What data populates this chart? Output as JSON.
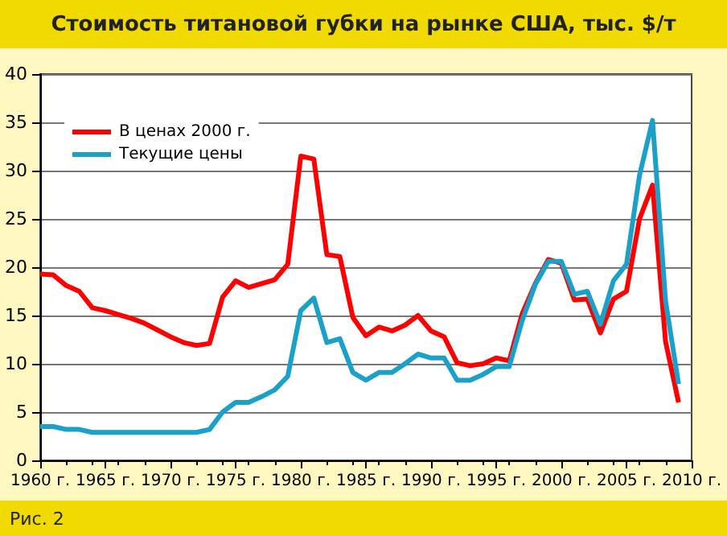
{
  "chart_data": {
    "type": "line",
    "title": "Стоимость титановой губки на рынке США,  тыс. $/т",
    "x": [
      1960,
      1961,
      1962,
      1963,
      1964,
      1965,
      1966,
      1967,
      1968,
      1969,
      1970,
      1971,
      1972,
      1973,
      1974,
      1975,
      1976,
      1977,
      1978,
      1979,
      1980,
      1981,
      1982,
      1983,
      1984,
      1985,
      1986,
      1987,
      1988,
      1989,
      1990,
      1991,
      1992,
      1993,
      1994,
      1995,
      1996,
      1997,
      1998,
      1999,
      2000,
      2001,
      2002,
      2003,
      2004,
      2005,
      2006,
      2007,
      2008,
      2009
    ],
    "series": [
      {
        "name": "В ценах 2000 г.",
        "color": "#ff0000",
        "values": [
          19.3,
          19.2,
          18.1,
          17.5,
          15.8,
          15.5,
          15.1,
          14.7,
          14.2,
          13.5,
          12.8,
          12.2,
          11.9,
          12.1,
          16.9,
          18.6,
          17.9,
          18.3,
          18.7,
          20.3,
          31.5,
          31.2,
          21.3,
          21.1,
          14.8,
          12.9,
          13.8,
          13.4,
          14.0,
          15.0,
          13.4,
          12.8,
          10.1,
          9.8,
          10.0,
          10.6,
          10.3,
          15.2,
          18.3,
          20.8,
          20.4,
          16.6,
          16.7,
          13.2,
          16.7,
          17.5,
          25.0,
          28.5,
          12.3,
          6.0
        ]
      },
      {
        "name": "Текущие цены",
        "color": "#1ba1c9",
        "values": [
          3.5,
          3.5,
          3.2,
          3.2,
          2.9,
          2.9,
          2.9,
          2.9,
          2.9,
          2.9,
          2.9,
          2.9,
          2.9,
          3.2,
          5.0,
          6.0,
          6.0,
          6.6,
          7.3,
          8.7,
          15.5,
          16.8,
          12.2,
          12.6,
          9.1,
          8.3,
          9.1,
          9.1,
          10.0,
          11.0,
          10.6,
          10.6,
          8.3,
          8.3,
          8.9,
          9.7,
          9.7,
          14.5,
          18.2,
          20.6,
          20.6,
          17.2,
          17.5,
          14.1,
          18.6,
          20.3,
          29.5,
          35.2,
          16.5,
          7.9
        ]
      }
    ],
    "xlim": [
      1960,
      2010
    ],
    "xticks": [
      {
        "value": 1960,
        "label": "1960 г."
      },
      {
        "value": 1965,
        "label": "1965 г."
      },
      {
        "value": 1970,
        "label": "1970 г."
      },
      {
        "value": 1975,
        "label": "1975 г."
      },
      {
        "value": 1980,
        "label": "1980 г."
      },
      {
        "value": 1985,
        "label": "1985 г."
      },
      {
        "value": 1990,
        "label": "1990 г."
      },
      {
        "value": 1995,
        "label": "1995 г."
      },
      {
        "value": 2000,
        "label": "2000 г."
      },
      {
        "value": 2005,
        "label": "2005 г."
      },
      {
        "value": 2010,
        "label": "2010 г."
      }
    ],
    "ylim": [
      0,
      40
    ],
    "yticks": [
      0,
      5,
      10,
      15,
      20,
      25,
      30,
      35,
      40
    ],
    "grid": "y",
    "legend": "top left",
    "marker": "none",
    "line_style": "solid",
    "annotations": [
      "Рис. 2"
    ]
  }
}
